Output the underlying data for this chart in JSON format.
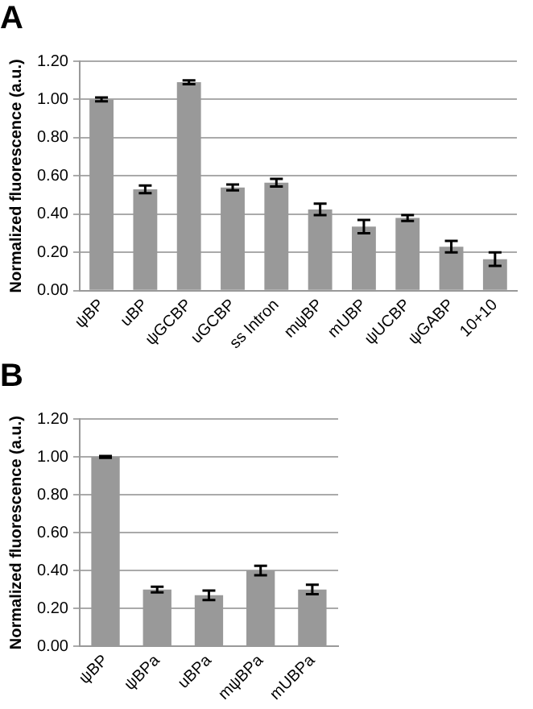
{
  "chart_data": [
    {
      "type": "bar",
      "title": "A",
      "ylabel": "Normalized fluorescence (a.u.)",
      "categories": [
        "ψBP",
        "uBP",
        "ψGCBP",
        "uGCBP",
        "ss Intron",
        "mψBP",
        "mUBP",
        "ψUCBP",
        "ψGABP",
        "10+10"
      ],
      "values": [
        1.0,
        0.53,
        1.09,
        0.54,
        0.565,
        0.425,
        0.335,
        0.38,
        0.23,
        0.165
      ],
      "errors": [
        0.01,
        0.02,
        0.01,
        0.015,
        0.02,
        0.03,
        0.035,
        0.015,
        0.03,
        0.035
      ],
      "color": "#999999",
      "ylim": [
        0,
        1.2
      ],
      "yticks": [
        {
          "value": 0,
          "label": "0.00"
        },
        {
          "value": 0.2,
          "label": "0.20"
        },
        {
          "value": 0.4,
          "label": "0.40"
        },
        {
          "value": 0.6,
          "label": "0.60"
        },
        {
          "value": 0.8,
          "label": "0.80"
        },
        {
          "value": 1,
          "label": "1.00"
        },
        {
          "value": 1.2,
          "label": "1.20"
        }
      ],
      "grid": "y",
      "legend": false
    },
    {
      "type": "bar",
      "title": "B",
      "ylabel": "Normalized fluorescence (a.u.)",
      "categories": [
        "ψBP",
        "ψBPa",
        "uBPa",
        "mψBPa",
        "mUBPa"
      ],
      "values": [
        1.0,
        0.3,
        0.27,
        0.4,
        0.3
      ],
      "errors": [
        0.005,
        0.015,
        0.025,
        0.025,
        0.025
      ],
      "color": "#999999",
      "ylim": [
        0,
        1.2
      ],
      "yticks": [
        {
          "value": 0,
          "label": "0.00"
        },
        {
          "value": 0.2,
          "label": "0.20"
        },
        {
          "value": 0.4,
          "label": "0.40"
        },
        {
          "value": 0.6,
          "label": "0.60"
        },
        {
          "value": 0.8,
          "label": "0.80"
        },
        {
          "value": 1,
          "label": "1.00"
        },
        {
          "value": 1.2,
          "label": "1.20"
        }
      ],
      "grid": "y",
      "legend": false
    }
  ]
}
